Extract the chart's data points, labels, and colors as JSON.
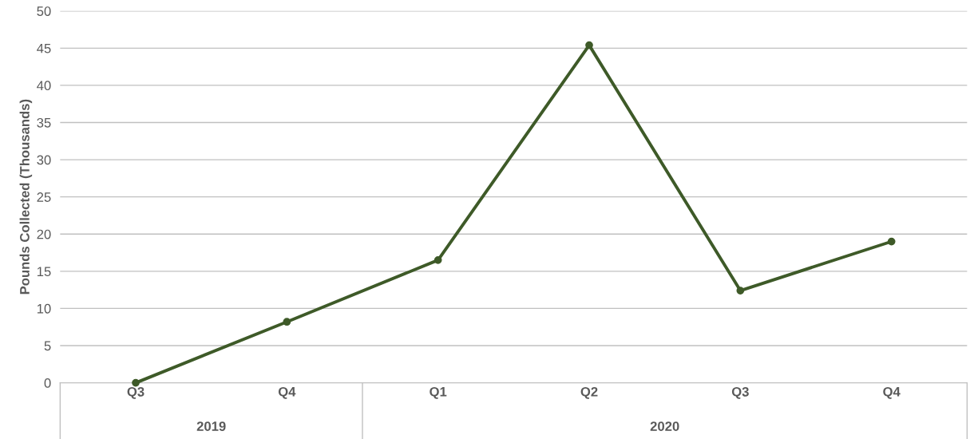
{
  "chart_data": {
    "type": "line",
    "ylabel": "Pounds Collected (Thousands)",
    "categories": [
      "Q3",
      "Q4",
      "Q1",
      "Q2",
      "Q3",
      "Q4"
    ],
    "series": [
      {
        "color": "#3e5a28",
        "values": [
          0,
          8.2,
          16.5,
          45.4,
          12.4,
          19.0
        ]
      }
    ],
    "ylim": [
      0,
      50
    ],
    "yticks": [
      0,
      5,
      10,
      15,
      20,
      25,
      30,
      35,
      40,
      45,
      50
    ],
    "grid": "y",
    "marker": "circle",
    "line_style": "solid",
    "annotations": [
      "2019",
      "2020"
    ]
  }
}
